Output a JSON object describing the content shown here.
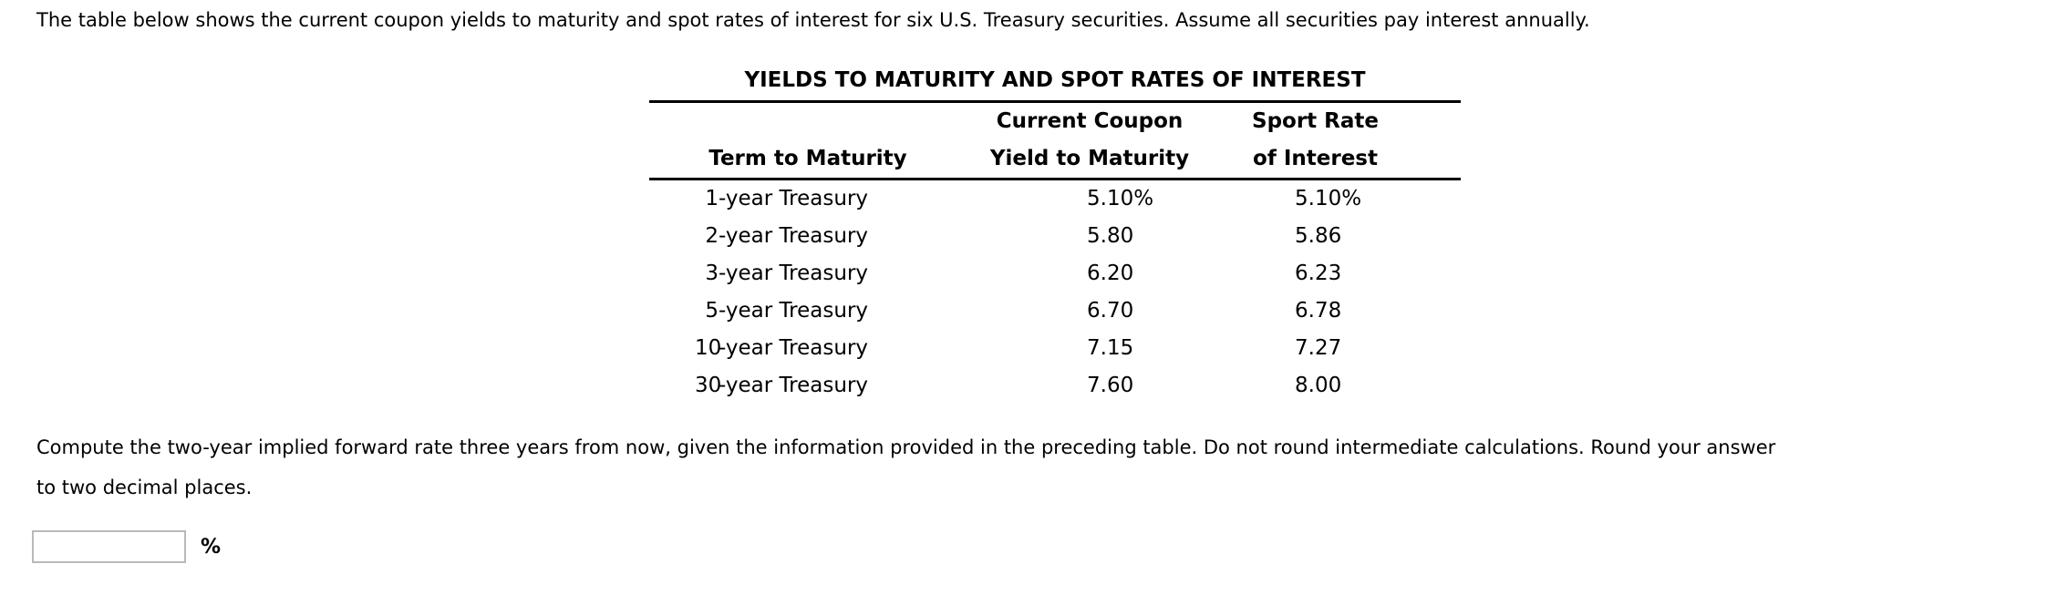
{
  "intro": "The table below shows the current coupon yields to maturity and spot rates of interest for six U.S. Treasury securities. Assume all securities pay interest annually.",
  "table": {
    "title": "YIELDS TO MATURITY AND SPOT RATES OF INTEREST",
    "columns": {
      "term_header": "Term to Maturity",
      "ytm_header_line1": "Current Coupon",
      "ytm_header_line2": "Yield to Maturity",
      "spot_header_line1": "Sport Rate",
      "spot_header_line2": "of Interest"
    },
    "rows": [
      {
        "term_prefix": "1",
        "term_suffix": "-year Treasury",
        "ytm": "5.10%",
        "spot": "5.10%"
      },
      {
        "term_prefix": "2",
        "term_suffix": "-year Treasury",
        "ytm": "5.80",
        "spot": "5.86"
      },
      {
        "term_prefix": "3",
        "term_suffix": "-year Treasury",
        "ytm": "6.20",
        "spot": "6.23"
      },
      {
        "term_prefix": "5",
        "term_suffix": "-year Treasury",
        "ytm": "6.70",
        "spot": "6.78"
      },
      {
        "term_prefix": "10",
        "term_suffix": "-year Treasury",
        "ytm": "7.15",
        "spot": "7.27"
      },
      {
        "term_prefix": "30",
        "term_suffix": "-year Treasury",
        "ytm": "7.60",
        "spot": "8.00"
      }
    ]
  },
  "question": {
    "line1": "Compute the two-year implied forward rate three years from now, given the information provided in the preceding table. Do not round intermediate calculations. Round your answer",
    "line2": "to two decimal places.",
    "answer_value": "",
    "unit_label": "%"
  }
}
